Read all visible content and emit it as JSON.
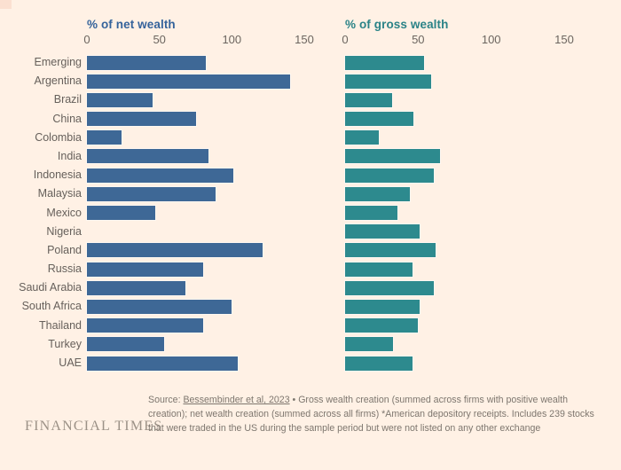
{
  "page": {
    "background": "#fff1e5"
  },
  "branding": {
    "logo": "FINANCIAL TIMES"
  },
  "footnote": {
    "source_prefix": "Source: ",
    "source_link": "Bessembinder et al, 2023",
    "source_rest": " • Gross wealth creation (summed across firms with positive wealth creation); net wealth creation (summed across all firms) *American depository receipts. Includes 239 stocks that were traded in the US during the sample period but were not listed on any other exchange"
  },
  "chart_data": [
    {
      "type": "bar",
      "orientation": "horizontal",
      "title": "% of net wealth",
      "color": "#3e6896",
      "title_color": "#34639b",
      "xlim": [
        0,
        150
      ],
      "ticks": [
        0,
        50,
        100,
        150
      ],
      "grid": false,
      "categories": [
        "Emerging",
        "Argentina",
        "Brazil",
        "China",
        "Colombia",
        "India",
        "Indonesia",
        "Malaysia",
        "Mexico",
        "Nigeria",
        "Poland",
        "Russia",
        "Saudi Arabia",
        "South Africa",
        "Thailand",
        "Turkey",
        "UAE"
      ],
      "values": [
        82,
        140,
        45,
        75,
        24,
        84,
        101,
        89,
        47,
        null,
        121,
        80,
        68,
        100,
        80,
        53,
        104
      ]
    },
    {
      "type": "bar",
      "orientation": "horizontal",
      "title": "% of gross wealth",
      "color": "#2d8a8e",
      "title_color": "#2a8387",
      "xlim": [
        0,
        150
      ],
      "ticks": [
        0,
        50,
        100,
        150
      ],
      "grid": false,
      "categories": [
        "Emerging",
        "Argentina",
        "Brazil",
        "China",
        "Colombia",
        "India",
        "Indonesia",
        "Malaysia",
        "Mexico",
        "Nigeria",
        "Poland",
        "Russia",
        "Saudi Arabia",
        "South Africa",
        "Thailand",
        "Turkey",
        "UAE"
      ],
      "values": [
        54,
        59,
        32,
        47,
        23,
        65,
        61,
        44,
        36,
        51,
        62,
        46,
        61,
        51,
        50,
        33,
        46
      ]
    }
  ]
}
